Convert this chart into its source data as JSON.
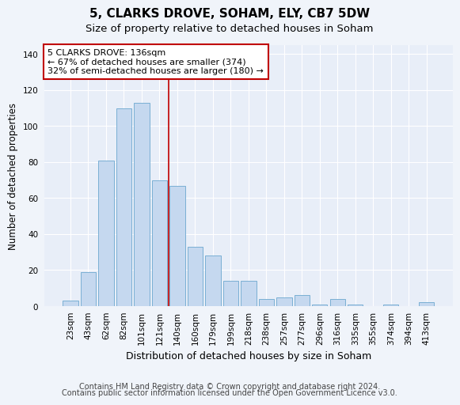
{
  "title": "5, CLARKS DROVE, SOHAM, ELY, CB7 5DW",
  "subtitle": "Size of property relative to detached houses in Soham",
  "xlabel": "Distribution of detached houses by size in Soham",
  "ylabel": "Number of detached properties",
  "categories": [
    "23sqm",
    "43sqm",
    "62sqm",
    "82sqm",
    "101sqm",
    "121sqm",
    "140sqm",
    "160sqm",
    "179sqm",
    "199sqm",
    "218sqm",
    "238sqm",
    "257sqm",
    "277sqm",
    "296sqm",
    "316sqm",
    "335sqm",
    "355sqm",
    "374sqm",
    "394sqm",
    "413sqm"
  ],
  "values": [
    3,
    19,
    81,
    110,
    113,
    70,
    67,
    33,
    28,
    14,
    14,
    4,
    5,
    6,
    1,
    4,
    1,
    0,
    1,
    0,
    2
  ],
  "bar_color": "#c5d8ef",
  "bar_edge_color": "#7aafd4",
  "background_color": "#e8eef8",
  "grid_color": "#ffffff",
  "vline_x": 5.5,
  "vline_color": "#c00000",
  "annotation_text": "5 CLARKS DROVE: 136sqm\n← 67% of detached houses are smaller (374)\n32% of semi-detached houses are larger (180) →",
  "annotation_box_color": "#ffffff",
  "annotation_box_edgecolor": "#c00000",
  "ylim": [
    0,
    145
  ],
  "yticks": [
    0,
    20,
    40,
    60,
    80,
    100,
    120,
    140
  ],
  "footer_line1": "Contains HM Land Registry data © Crown copyright and database right 2024.",
  "footer_line2": "Contains public sector information licensed under the Open Government Licence v3.0.",
  "title_fontsize": 11,
  "subtitle_fontsize": 9.5,
  "ylabel_fontsize": 8.5,
  "xlabel_fontsize": 9,
  "tick_fontsize": 7.5,
  "annotation_fontsize": 8,
  "footer_fontsize": 7
}
